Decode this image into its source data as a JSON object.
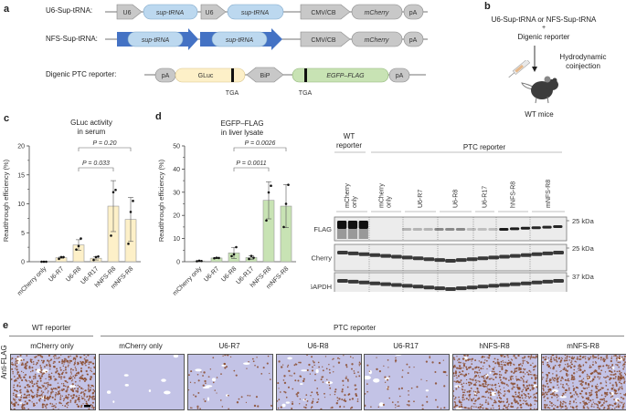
{
  "panels": {
    "a": {
      "label": "a",
      "constructs": [
        {
          "name": "U6-Sup-tRNA:",
          "elements": [
            "U6",
            "sup-tRNA",
            "U6",
            "sup-tRNA",
            "CMV/CB",
            "mCherry",
            "pA"
          ]
        },
        {
          "name": "NFS-Sup-tRNA:",
          "elements": [
            "sup-tRNA",
            "sup-tRNA",
            "CMV/CB",
            "mCherry",
            "pA"
          ]
        },
        {
          "name": "Digenic PTC reporter:",
          "elements": [
            "pA",
            "GLuc",
            "BiP",
            "EGFP–FLAG",
            "pA"
          ],
          "stop_codon_labels": [
            "TGA",
            "TGA"
          ]
        }
      ]
    },
    "b": {
      "label": "b",
      "line1": "U6-Sup-tRNA or NFS-Sup-tRNA",
      "plus": "+",
      "line2": "Digenic reporter",
      "arrow_label_1": "Hydrodynamic",
      "arrow_label_2": "coinjection",
      "subject": "WT mice"
    },
    "e": {
      "label": "e",
      "group_wt": "WT reporter",
      "group_ptc": "PTC reporter",
      "row_label": "Anti-FLAG",
      "images": [
        {
          "title": "mCherry only",
          "density": "high"
        },
        {
          "title": "mCherry only",
          "density": "none"
        },
        {
          "title": "U6-R7",
          "density": "low"
        },
        {
          "title": "U6-R8",
          "density": "mid"
        },
        {
          "title": "U6-R17",
          "density": "low"
        },
        {
          "title": "hNFS-R8",
          "density": "high"
        },
        {
          "title": "mNFS-R8",
          "density": "high"
        }
      ]
    },
    "blot": {
      "group_wt_1": "WT",
      "group_wt_2": "reporter",
      "group_ptc": "PTC reporter",
      "lanes": [
        "mCherry only",
        "mCherry only",
        "U6-R7",
        "U6-R8",
        "U6-R17",
        "hNFS-R8",
        "mNFS-R8"
      ],
      "rows": [
        {
          "label": "FLAG",
          "marker": "25 kDa"
        },
        {
          "label": "mCherry",
          "marker": "25 kDa"
        },
        {
          "label": "GAPDH",
          "marker": "37 kDa"
        }
      ]
    }
  },
  "chart_data": [
    {
      "panel": "c",
      "type": "bar",
      "title": "GLuc activity in serum",
      "title_line1": "GLuc activity",
      "title_line2": "in serum",
      "xlabel": "",
      "ylabel": "Readthrough efficiency (%)",
      "ylim": [
        0,
        20
      ],
      "yticks": [
        0,
        5,
        10,
        15,
        20
      ],
      "categories": [
        "mCherry only",
        "U6-R7",
        "U6-R8",
        "U6-R17",
        "hNFS-R8",
        "mNFS-R8"
      ],
      "values": [
        0.0,
        0.7,
        2.9,
        0.6,
        9.6,
        7.3
      ],
      "error": [
        0.05,
        0.1,
        0.9,
        0.3,
        4.4,
        3.8
      ],
      "points": [
        [
          0,
          0,
          0
        ],
        [
          0.5,
          0.8,
          0.8
        ],
        [
          2.1,
          2.7,
          4.0
        ],
        [
          0.3,
          0.8,
          0.9
        ],
        [
          4.5,
          12.0,
          12.4
        ],
        [
          3.1,
          8.6,
          10.5
        ]
      ],
      "bar_color": "#fdf0c8",
      "comparisons": [
        {
          "from": "U6-R8",
          "to": "hNFS-R8",
          "label": "P = 0.033"
        },
        {
          "from": "U6-R8",
          "to": "mNFS-R8",
          "label": "P = 0.20"
        }
      ],
      "grid": false
    },
    {
      "panel": "d",
      "type": "bar",
      "title": "EGFP–FLAG in liver lysate",
      "title_line1": "EGFP–FLAG",
      "title_line2": "in liver lysate",
      "xlabel": "",
      "ylabel": "Readthrough efficiency (%)",
      "ylim": [
        0,
        50
      ],
      "yticks": [
        0,
        10,
        20,
        30,
        40,
        50
      ],
      "categories": [
        "mCherry only",
        "U6-R7",
        "U6-R8",
        "U6-R17",
        "hNFS-R8",
        "mNFS-R8"
      ],
      "values": [
        0.3,
        1.6,
        3.8,
        1.8,
        26.5,
        24.0
      ],
      "error": [
        0.2,
        0.2,
        2.4,
        0.8,
        8.0,
        9.3
      ],
      "points": [
        [
          0.2,
          0.4,
          0.3
        ],
        [
          1.5,
          1.7,
          1.6
        ],
        [
          2.4,
          3.2,
          6.3
        ],
        [
          1.2,
          2.5,
          1.7
        ],
        [
          17.8,
          29.9,
          32.8
        ],
        [
          15.0,
          25.0,
          33.2
        ]
      ],
      "bar_color": "#c8e3b4",
      "comparisons": [
        {
          "from": "U6-R8",
          "to": "hNFS-R8",
          "label": "P = 0.0011"
        },
        {
          "from": "U6-R8",
          "to": "mNFS-R8",
          "label": "P = 0.0026"
        }
      ],
      "grid": false
    }
  ]
}
